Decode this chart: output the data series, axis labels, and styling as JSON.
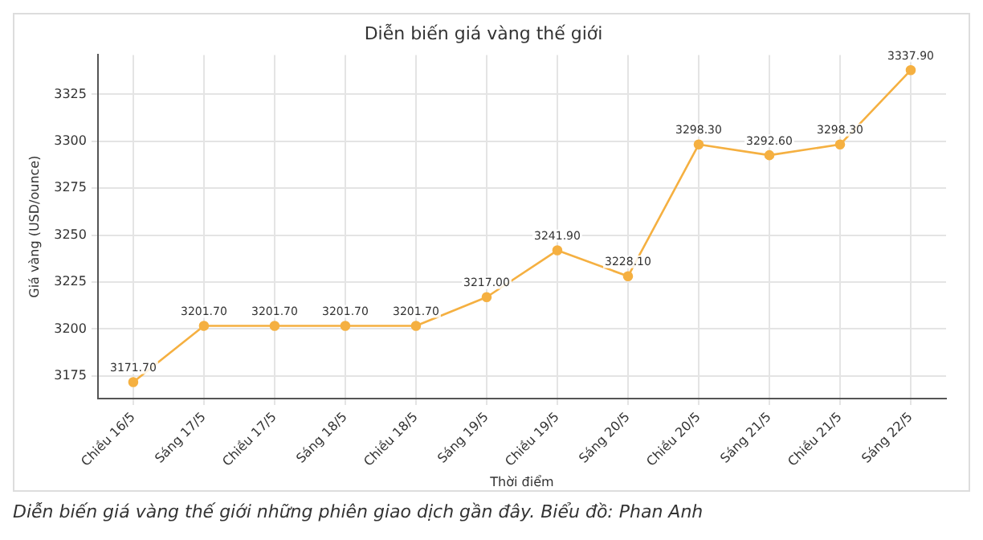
{
  "chart_data": {
    "type": "line",
    "title": "Diễn biến giá vàng thế giới",
    "xlabel": "Thời điểm",
    "ylabel": "Giá vàng (USD/ounce)",
    "categories": [
      "Chiều 16/5",
      "Sáng 17/5",
      "Chiều 17/5",
      "Sáng 18/5",
      "Chiều 18/5",
      "Sáng 19/5",
      "Chiều 19/5",
      "Sáng 20/5",
      "Chiều 20/5",
      "Sáng 21/5",
      "Chiều 21/5",
      "Sáng 22/5"
    ],
    "series": [
      {
        "color": "#f5b041",
        "values": [
          3171.7,
          3201.7,
          3201.7,
          3201.7,
          3201.7,
          3217.0,
          3241.9,
          3228.1,
          3298.3,
          3292.6,
          3298.3,
          3337.9
        ],
        "value_labels": [
          "3171.70",
          "3201.70",
          "3201.70",
          "3201.70",
          "3201.70",
          "3217.00",
          "3241.90",
          "3228.10",
          "3298.30",
          "3292.60",
          "3298.30",
          "3337.90"
        ]
      }
    ],
    "ylim": [
      3163,
      3346
    ],
    "yticks": [
      3175,
      3200,
      3225,
      3250,
      3275,
      3300,
      3325
    ],
    "grid": true,
    "marker": "circle",
    "line_style": "solid",
    "annotations": [
      "Diễn biến giá vàng thế giới những phiên giao dịch gần đây. Biểu đồ: Phan Anh"
    ]
  }
}
